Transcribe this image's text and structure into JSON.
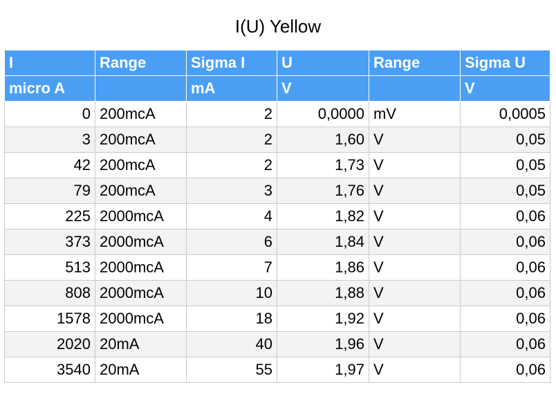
{
  "title": "I(U) Yellow",
  "columns": [
    {
      "header": "I",
      "unit": "micro A"
    },
    {
      "header": "Range",
      "unit": ""
    },
    {
      "header": "Sigma I",
      "unit": "mA"
    },
    {
      "header": "U",
      "unit": "V"
    },
    {
      "header": "Range",
      "unit": ""
    },
    {
      "header": "Sigma U",
      "unit": "V"
    }
  ],
  "rows": [
    [
      "0",
      "200mcA",
      "2",
      "0,0000",
      "mV",
      "0,0005"
    ],
    [
      "3",
      "200mcA",
      "2",
      "1,60",
      "V",
      "0,05"
    ],
    [
      "42",
      "200mcA",
      "2",
      "1,73",
      "V",
      "0,05"
    ],
    [
      "79",
      "200mcA",
      "3",
      "1,76",
      "V",
      "0,05"
    ],
    [
      "225",
      "2000mcA",
      "4",
      "1,82",
      "V",
      "0,06"
    ],
    [
      "373",
      "2000mcA",
      "6",
      "1,84",
      "V",
      "0,06"
    ],
    [
      "513",
      "2000mcA",
      "7",
      "1,86",
      "V",
      "0,06"
    ],
    [
      "808",
      "2000mcA",
      "10",
      "1,88",
      "V",
      "0,06"
    ],
    [
      "1578",
      "2000mcA",
      "18",
      "1,92",
      "V",
      "0,06"
    ],
    [
      "2020",
      "20mA",
      "40",
      "1,96",
      "V",
      "0,06"
    ],
    [
      "3540",
      "20mA",
      "55",
      "1,97",
      "V",
      "0,06"
    ]
  ]
}
